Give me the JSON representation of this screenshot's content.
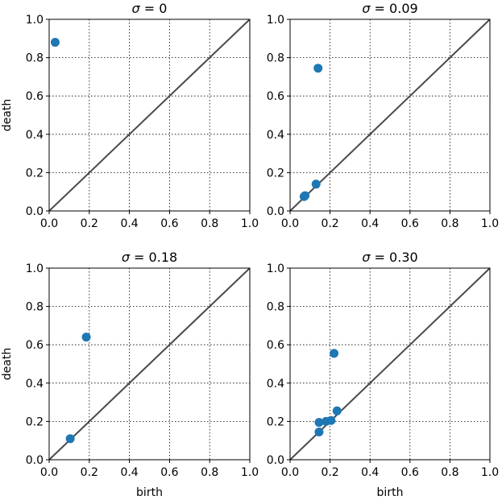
{
  "chart_data": [
    {
      "type": "scatter",
      "title_prefix": "σ",
      "title_value": "= 0",
      "xlabel": "",
      "ylabel": "death",
      "xlim": [
        0,
        1
      ],
      "ylim": [
        0,
        1
      ],
      "ticks": [
        "0.0",
        "0.2",
        "0.4",
        "0.6",
        "0.8",
        "1.0"
      ],
      "grid": true,
      "diagonal": true,
      "point_color": "#1f77b4",
      "points": [
        {
          "x": 0.03,
          "y": 0.88
        }
      ]
    },
    {
      "type": "scatter",
      "title_prefix": "σ",
      "title_value": "= 0.09",
      "xlabel": "",
      "ylabel": "",
      "xlim": [
        0,
        1
      ],
      "ylim": [
        0,
        1
      ],
      "ticks": [
        "0.0",
        "0.2",
        "0.4",
        "0.6",
        "0.8",
        "1.0"
      ],
      "grid": true,
      "diagonal": true,
      "point_color": "#1f77b4",
      "points": [
        {
          "x": 0.14,
          "y": 0.745
        },
        {
          "x": 0.13,
          "y": 0.14
        },
        {
          "x": 0.075,
          "y": 0.08
        },
        {
          "x": 0.07,
          "y": 0.075
        }
      ]
    },
    {
      "type": "scatter",
      "title_prefix": "σ",
      "title_value": "= 0.18",
      "xlabel": "birth",
      "ylabel": "death",
      "xlim": [
        0,
        1
      ],
      "ylim": [
        0,
        1
      ],
      "ticks": [
        "0.0",
        "0.2",
        "0.4",
        "0.6",
        "0.8",
        "1.0"
      ],
      "grid": true,
      "diagonal": true,
      "point_color": "#1f77b4",
      "points": [
        {
          "x": 0.185,
          "y": 0.64
        },
        {
          "x": 0.105,
          "y": 0.11
        }
      ]
    },
    {
      "type": "scatter",
      "title_prefix": "σ",
      "title_value": "= 0.30",
      "xlabel": "birth",
      "ylabel": "",
      "xlim": [
        0,
        1
      ],
      "ylim": [
        0,
        1
      ],
      "ticks": [
        "0.0",
        "0.2",
        "0.4",
        "0.6",
        "0.8",
        "1.0"
      ],
      "grid": true,
      "diagonal": true,
      "point_color": "#1f77b4",
      "points": [
        {
          "x": 0.22,
          "y": 0.555
        },
        {
          "x": 0.235,
          "y": 0.255
        },
        {
          "x": 0.205,
          "y": 0.205
        },
        {
          "x": 0.18,
          "y": 0.2
        },
        {
          "x": 0.145,
          "y": 0.195
        },
        {
          "x": 0.145,
          "y": 0.145
        }
      ]
    }
  ]
}
